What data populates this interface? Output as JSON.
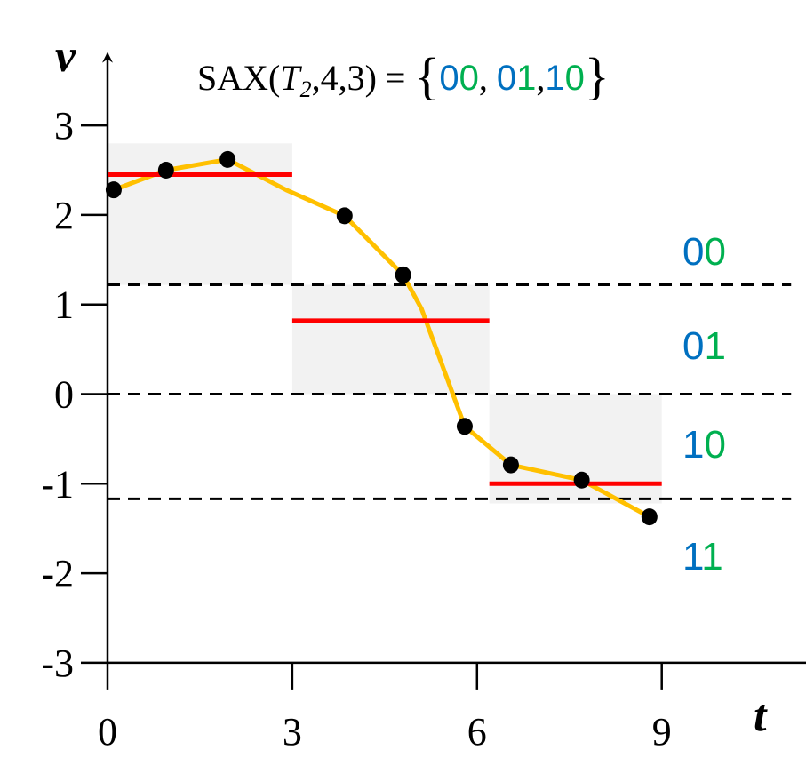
{
  "colors": {
    "series_line": "#FFC000",
    "points": "#000000",
    "paa_segments": "#FF0000",
    "breakpoints": "#000000",
    "shaded_region": "#F2F2F2",
    "bit_blue": "#0070C0",
    "bit_green": "#00B050"
  },
  "chart_data": {
    "type": "line",
    "title": {
      "prefix": "SAX(",
      "variable": "T",
      "subscript": "2",
      "suffix": ",4,3) = ",
      "open_brace": "{",
      "close_brace": "}",
      "words": [
        {
          "text": "00",
          "bits": [
            "0",
            "0"
          ],
          "bit_colors": [
            "blue",
            "green"
          ],
          "separator": ", "
        },
        {
          "text": "01",
          "bits": [
            "0",
            "1"
          ],
          "bit_colors": [
            "blue",
            "green"
          ],
          "separator": ","
        },
        {
          "text": "10",
          "bits": [
            "1",
            "0"
          ],
          "bit_colors": [
            "blue",
            "green"
          ],
          "separator": ""
        }
      ]
    },
    "xlabel": "t",
    "ylabel": "v",
    "xlim": [
      0,
      11.5
    ],
    "ylim": [
      -3,
      3.6
    ],
    "x_ticks": [
      0,
      3,
      6,
      9
    ],
    "x_tick_labels": [
      "0",
      "3",
      "6",
      "9"
    ],
    "y_ticks": [
      -3,
      -2,
      -1,
      0,
      1,
      2,
      3
    ],
    "y_tick_labels": [
      "-3",
      "-2",
      "-1",
      "0",
      "1",
      "2",
      "3"
    ],
    "grid": false,
    "series": [
      {
        "points": [
          {
            "x": 0.1,
            "y": 2.28
          },
          {
            "x": 0.95,
            "y": 2.5
          },
          {
            "x": 1.95,
            "y": 2.62
          },
          {
            "x": 2.9,
            "y": 2.28
          },
          {
            "x": 3.85,
            "y": 1.99
          },
          {
            "x": 4.8,
            "y": 1.33
          },
          {
            "x": 5.1,
            "y": 0.95
          },
          {
            "x": 5.8,
            "y": -0.36
          },
          {
            "x": 6.55,
            "y": -0.79
          },
          {
            "x": 7.7,
            "y": -0.96
          },
          {
            "x": 8.8,
            "y": -1.37
          }
        ],
        "markers": [
          {
            "x": 0.1,
            "y": 2.28
          },
          {
            "x": 0.95,
            "y": 2.5
          },
          {
            "x": 1.95,
            "y": 2.62
          },
          {
            "x": 3.85,
            "y": 1.99
          },
          {
            "x": 4.8,
            "y": 1.33
          },
          {
            "x": 5.8,
            "y": -0.36
          },
          {
            "x": 6.55,
            "y": -0.79
          },
          {
            "x": 7.7,
            "y": -0.96
          },
          {
            "x": 8.8,
            "y": -1.37
          }
        ]
      }
    ],
    "paa_segments": [
      {
        "x_start": 0,
        "x_end": 3,
        "value": 2.45
      },
      {
        "x_start": 3,
        "x_end": 6.2,
        "value": 0.82
      },
      {
        "x_start": 6.2,
        "x_end": 9,
        "value": -1.0
      }
    ],
    "shaded_regions": [
      {
        "x_start": 0,
        "x_end": 3,
        "y_start": 1.22,
        "y_end": 2.8
      },
      {
        "x_start": 3,
        "x_end": 6.2,
        "y_start": 0,
        "y_end": 1.22
      },
      {
        "x_start": 6.2,
        "x_end": 9,
        "y_start": -1.22,
        "y_end": 0
      }
    ],
    "breakpoints": [
      1.22,
      0,
      -1.17
    ],
    "region_labels": [
      {
        "text": "00",
        "bits": [
          "0",
          "0"
        ],
        "bit_colors": [
          "blue",
          "green"
        ],
        "y": 1.6
      },
      {
        "text": "01",
        "bits": [
          "0",
          "1"
        ],
        "bit_colors": [
          "blue",
          "green"
        ],
        "y": 0.55
      },
      {
        "text": "10",
        "bits": [
          "1",
          "0"
        ],
        "bit_colors": [
          "blue",
          "green"
        ],
        "y": -0.55
      },
      {
        "text": "11",
        "bits": [
          "1",
          "1"
        ],
        "bit_colors": [
          "blue",
          "green"
        ],
        "y": -1.8
      }
    ]
  }
}
